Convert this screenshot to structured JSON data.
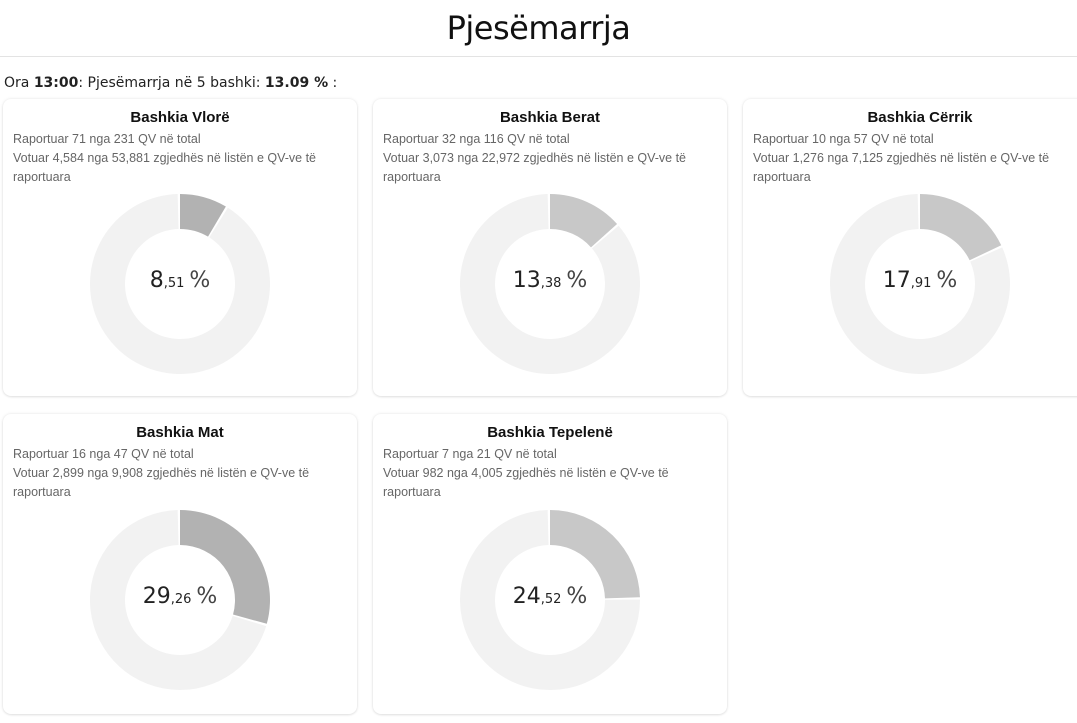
{
  "header": {
    "title": "Pjesëmarrja"
  },
  "summary": {
    "prefix": "Ora ",
    "time": "13:00",
    "middle": ": Pjesëmarrja në 5 bashki: ",
    "total": "13.09 %",
    "suffix": " :"
  },
  "colors": {
    "track": "#f2f2f2",
    "fill_light": "#c8c8c8",
    "fill_dark": "#b2b2b2"
  },
  "chart_data": [
    {
      "type": "pie",
      "title": "Bashkia Vlorë",
      "reported_line": "Raportuar 71 nga 231 QV në total",
      "voted_line": "Votuar 4,584 nga 53,881 zgjedhës në listën e QV-ve të raportuara",
      "value": 8.51,
      "value_int": "8",
      "value_dec": ",51",
      "unit": "%",
      "fill": "#b2b2b2"
    },
    {
      "type": "pie",
      "title": "Bashkia Berat",
      "reported_line": "Raportuar 32 nga 116 QV në total",
      "voted_line": "Votuar 3,073 nga 22,972 zgjedhës në listën e QV-ve të raportuara",
      "value": 13.38,
      "value_int": "13",
      "value_dec": ",38",
      "unit": "%",
      "fill": "#c8c8c8"
    },
    {
      "type": "pie",
      "title": "Bashkia Cërrik",
      "reported_line": "Raportuar 10 nga 57 QV në total",
      "voted_line": "Votuar 1,276 nga 7,125 zgjedhës në listën e QV-ve të raportuara",
      "value": 17.91,
      "value_int": "17",
      "value_dec": ",91",
      "unit": "%",
      "fill": "#c8c8c8"
    },
    {
      "type": "pie",
      "title": "Bashkia Mat",
      "reported_line": "Raportuar 16 nga 47 QV në total",
      "voted_line": "Votuar 2,899 nga 9,908 zgjedhës në listën e QV-ve të raportuara",
      "value": 29.26,
      "value_int": "29",
      "value_dec": ",26",
      "unit": "%",
      "fill": "#b2b2b2"
    },
    {
      "type": "pie",
      "title": "Bashkia Tepelenë",
      "reported_line": "Raportuar 7 nga 21 QV në total",
      "voted_line": "Votuar 982 nga 4,005 zgjedhës në listën e QV-ve të raportuara",
      "value": 24.52,
      "value_int": "24",
      "value_dec": ",52",
      "unit": "%",
      "fill": "#c8c8c8"
    }
  ]
}
